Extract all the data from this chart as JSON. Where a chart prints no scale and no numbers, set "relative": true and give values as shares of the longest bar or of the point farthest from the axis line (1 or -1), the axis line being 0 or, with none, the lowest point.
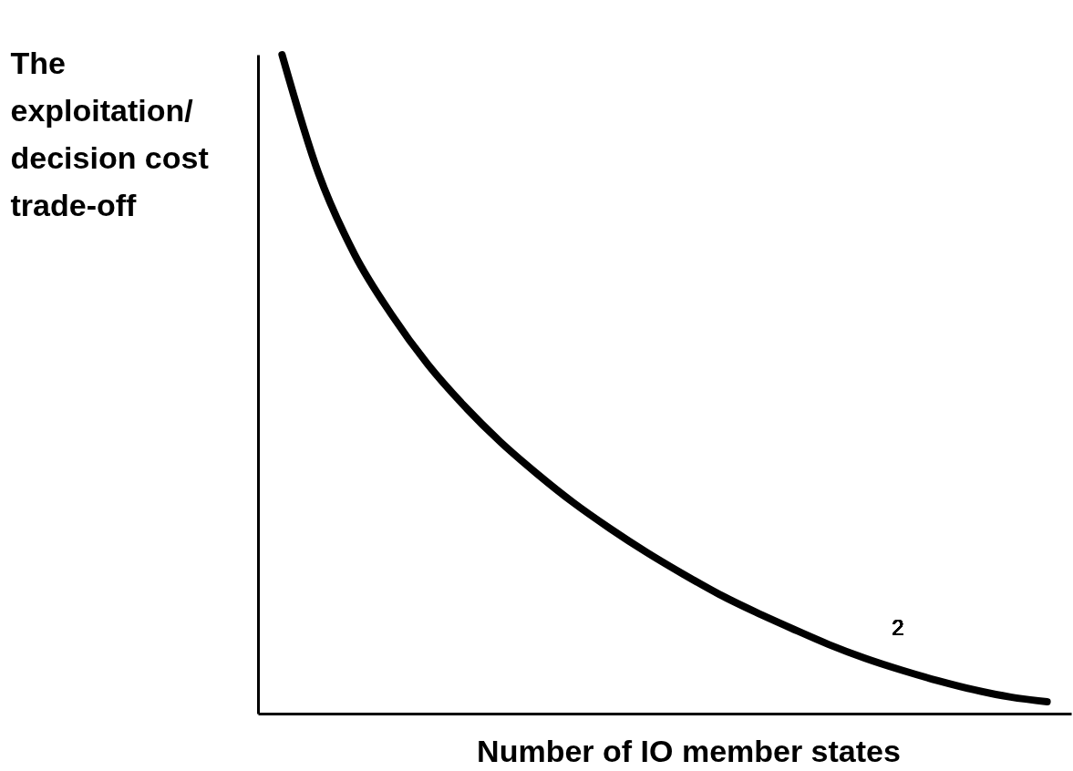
{
  "chart_data": {
    "type": "line",
    "relative": true,
    "xlabel": "Number of IO member states",
    "ylabel": "The exploitation/decision cost trade-off",
    "categories": [
      null,
      null,
      null,
      null,
      null,
      null,
      null,
      null,
      null,
      null,
      null,
      null,
      null,
      null,
      null,
      null,
      null,
      null,
      null,
      null,
      null,
      null
    ],
    "series": [
      {
        "color": "#000000",
        "values": [
          1,
          0.82,
          0.696,
          0.606,
          0.53,
          0.467,
          0.412,
          0.364,
          0.32,
          0.281,
          0.245,
          0.212,
          0.181,
          0.154,
          0.129,
          0.105,
          0.084,
          0.066,
          0.05,
          0.036,
          0.025,
          0.018
        ]
      }
    ],
    "annotations": [
      "2"
    ],
    "grid": false,
    "line_style": "solid"
  }
}
